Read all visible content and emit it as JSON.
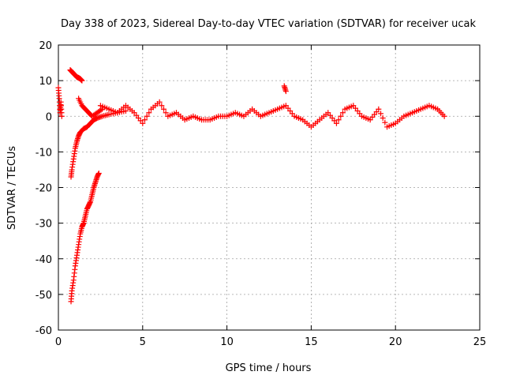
{
  "chart_data": {
    "type": "scatter",
    "title": "Day 338 of 2023, Sidereal Day-to-day VTEC variation (SDTVAR) for receiver ucak",
    "xlabel": "GPS time / hours",
    "ylabel": "SDTVAR / TECUs",
    "xlim": [
      0,
      25
    ],
    "ylim": [
      -60,
      20
    ],
    "xticks": [
      0,
      5,
      10,
      15,
      20,
      25
    ],
    "yticks": [
      -60,
      -50,
      -40,
      -30,
      -20,
      -10,
      0,
      10,
      20
    ],
    "grid": true,
    "marker": "+",
    "series": [
      {
        "name": "SDTVAR",
        "color": "#ff0000",
        "segments": [
          {
            "note": "start spikes near t=0",
            "x": [
              0.0,
              0.05,
              0.1,
              0.15,
              0.2
            ],
            "y": [
              8,
              5,
              1,
              4,
              0
            ]
          },
          {
            "note": "descending arc from +13",
            "x": [
              0.7,
              0.8,
              0.9,
              1.0,
              1.1,
              1.2,
              1.3,
              1.4
            ],
            "y": [
              13,
              12.5,
              12,
              11.5,
              11,
              10.8,
              10.5,
              10
            ]
          },
          {
            "note": "recovery from -17 to 0",
            "x": [
              0.75,
              0.8,
              0.9,
              1.0,
              1.1,
              1.2,
              1.3,
              1.5,
              1.7,
              1.9,
              2.1,
              2.3,
              2.6,
              3.0,
              3.5,
              4.0
            ],
            "y": [
              -17,
              -15,
              -12,
              -9,
              -7,
              -5.5,
              -4.5,
              -3.5,
              -3,
              -2,
              -1,
              -0.5,
              0,
              0.5,
              1,
              1.5
            ]
          },
          {
            "note": "deep arc from -52 to -16",
            "x": [
              0.75,
              0.8,
              0.9,
              1.0,
              1.1,
              1.2,
              1.3,
              1.4,
              1.5,
              1.6,
              1.7,
              1.8,
              1.9,
              2.0,
              2.1,
              2.2,
              2.3,
              2.4
            ],
            "y": [
              -52,
              -49,
              -46,
              -42,
              -39,
              -36,
              -33,
              -31,
              -30,
              -28,
              -26,
              -25,
              -24,
              -22,
              -20,
              -18.5,
              -17,
              -16
            ]
          },
          {
            "note": "branch",
            "x": [
              1.2,
              1.4,
              1.6,
              1.8,
              2.0,
              2.3,
              2.6
            ],
            "y": [
              5,
              3,
              2,
              1,
              0,
              1,
              2
            ]
          },
          {
            "note": "main band",
            "x": [
              2.5,
              3.0,
              3.5,
              4.0,
              4.5,
              5.0,
              5.5,
              6.0,
              6.5,
              7.0,
              7.5,
              8.0,
              8.5,
              9.0,
              9.5,
              10.0,
              10.5,
              11.0,
              11.5,
              12.0,
              12.5,
              13.0,
              13.5,
              14.0,
              14.5,
              15.0,
              15.5,
              16.0,
              16.5,
              17.0,
              17.5,
              18.0,
              18.5,
              19.0,
              19.5,
              20.0,
              20.5,
              21.0,
              21.5,
              22.0,
              22.5,
              22.9
            ],
            "y": [
              3,
              2,
              1,
              3,
              1,
              -2,
              2,
              4,
              0,
              1,
              -1,
              0,
              -1,
              -1,
              0,
              0,
              1,
              0,
              2,
              0,
              1,
              2,
              3,
              0,
              -1,
              -3,
              -1,
              1,
              -2,
              2,
              3,
              0,
              -1,
              2,
              -3,
              -2,
              0,
              1,
              2,
              3,
              2,
              0
            ]
          },
          {
            "note": "spike near 13.5",
            "x": [
              13.4,
              13.5
            ],
            "y": [
              8.5,
              7
            ]
          }
        ]
      }
    ]
  }
}
